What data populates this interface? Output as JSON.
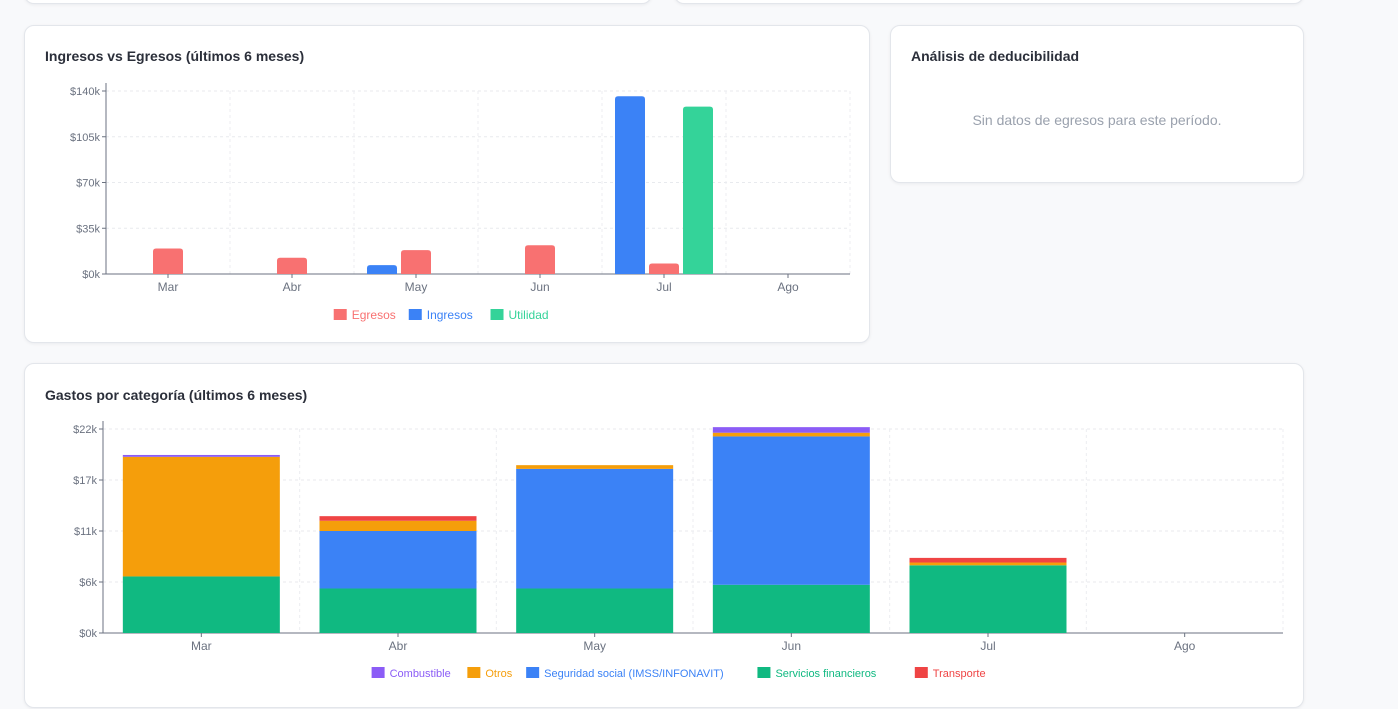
{
  "colors": {
    "egresos": "#f87171",
    "ingresos": "#3b82f6",
    "utilidad": "#34d399",
    "combustible": "#8b5cf6",
    "otros": "#f59e0b",
    "seguridad_social": "#3b82f6",
    "servicios_financieros": "#10b981",
    "transporte": "#ef4444"
  },
  "income_card": {
    "title": "Ingresos vs Egresos (últimos 6 meses)",
    "chart_data": {
      "type": "bar",
      "categories": [
        "Mar",
        "Abr",
        "May",
        "Jun",
        "Jul",
        "Ago"
      ],
      "series": [
        {
          "name": "Egresos",
          "values": [
            19500,
            12400,
            18300,
            22000,
            8000,
            0
          ]
        },
        {
          "name": "Ingresos",
          "values": [
            0,
            0,
            6800,
            0,
            136000,
            0
          ]
        },
        {
          "name": "Utilidad",
          "values": [
            0,
            0,
            0,
            0,
            128000,
            0
          ]
        }
      ],
      "yticks": [
        "$0k",
        "$35k",
        "$70k",
        "$105k",
        "$140k"
      ],
      "ylim": [
        0,
        140000
      ],
      "grid": true,
      "legend_position": "bottom-center"
    }
  },
  "deductibility_card": {
    "title": "Análisis de deducibilidad",
    "empty_message": "Sin datos de egresos para este período."
  },
  "category_card": {
    "title": "Gastos por categoría (últimos 6 meses)",
    "chart_data": {
      "type": "bar",
      "stacked": true,
      "categories": [
        "Mar",
        "Abr",
        "May",
        "Jun",
        "Jul",
        "Ago"
      ],
      "series": [
        {
          "name": "Servicios financieros",
          "values": [
            6100,
            4800,
            4800,
            5200,
            7300,
            0
          ]
        },
        {
          "name": "Seguridad social (IMSS/INFONAVIT)",
          "values": [
            0,
            6200,
            12900,
            16000,
            0,
            0
          ]
        },
        {
          "name": "Otros",
          "values": [
            12900,
            1100,
            400,
            400,
            300,
            0
          ]
        },
        {
          "name": "Combustible",
          "values": [
            200,
            0,
            0,
            600,
            0,
            0
          ]
        },
        {
          "name": "Transporte",
          "values": [
            0,
            500,
            0,
            0,
            500,
            0
          ]
        }
      ],
      "legend_order": [
        "Combustible",
        "Otros",
        "Seguridad social (IMSS/INFONAVIT)",
        "Servicios financieros",
        "Transporte"
      ],
      "yticks": [
        "$0k",
        "$6k",
        "$11k",
        "$17k",
        "$22k"
      ],
      "ylim": [
        0,
        22000
      ],
      "grid": true,
      "legend_position": "bottom-center"
    }
  }
}
